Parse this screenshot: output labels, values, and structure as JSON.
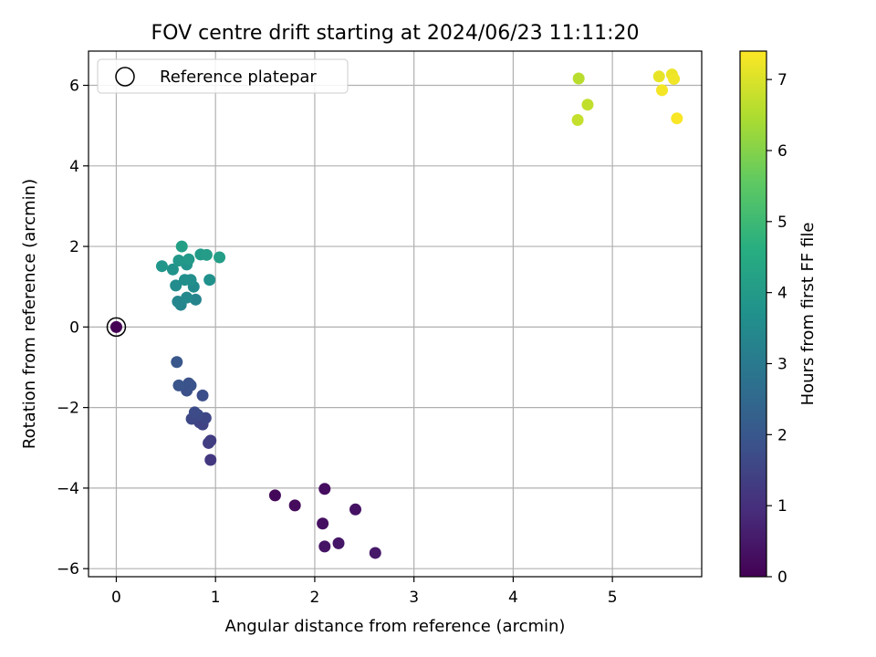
{
  "chart_data": {
    "type": "scatter",
    "title": "FOV centre drift starting at 2024/06/23 11:11:20",
    "xlabel": "Angular distance from reference (arcmin)",
    "ylabel": "Rotation from reference (arcmin)",
    "xlim": [
      -0.28,
      5.9
    ],
    "ylim": [
      -6.2,
      6.85
    ],
    "xticks": [
      0,
      1,
      2,
      3,
      4,
      5
    ],
    "yticks": [
      -6,
      -4,
      -2,
      0,
      2,
      4,
      6
    ],
    "xtick_labels": [
      "0",
      "1",
      "2",
      "3",
      "4",
      "5"
    ],
    "ytick_labels": [
      "−6",
      "−4",
      "−2",
      "0",
      "2",
      "4",
      "6"
    ],
    "grid": true,
    "legend": {
      "position": "top-left",
      "label": "Reference platepar"
    },
    "reference_point": {
      "x": 0,
      "y": 0
    },
    "colorbar": {
      "label": "Hours from first FF file",
      "range": [
        0,
        7.4
      ],
      "ticks": [
        0,
        1,
        2,
        3,
        4,
        5,
        6,
        7
      ],
      "tick_labels": [
        "0",
        "1",
        "2",
        "3",
        "4",
        "5",
        "6",
        "7"
      ],
      "colormap": "viridis"
    },
    "points": [
      {
        "x": 0.0,
        "y": 0.0,
        "c": 0.0
      },
      {
        "x": 1.6,
        "y": -4.18,
        "c": 0.15
      },
      {
        "x": 1.8,
        "y": -4.43,
        "c": 0.2
      },
      {
        "x": 2.1,
        "y": -4.02,
        "c": 0.25
      },
      {
        "x": 2.08,
        "y": -4.88,
        "c": 0.3
      },
      {
        "x": 2.41,
        "y": -4.53,
        "c": 0.35
      },
      {
        "x": 2.1,
        "y": -5.45,
        "c": 0.4
      },
      {
        "x": 2.24,
        "y": -5.37,
        "c": 0.45
      },
      {
        "x": 2.61,
        "y": -5.61,
        "c": 0.5
      },
      {
        "x": 0.95,
        "y": -3.3,
        "c": 1.2
      },
      {
        "x": 0.95,
        "y": -2.82,
        "c": 1.3
      },
      {
        "x": 0.93,
        "y": -2.88,
        "c": 1.35
      },
      {
        "x": 0.87,
        "y": -2.42,
        "c": 1.45
      },
      {
        "x": 0.84,
        "y": -2.37,
        "c": 1.5
      },
      {
        "x": 0.9,
        "y": -2.26,
        "c": 1.55
      },
      {
        "x": 0.76,
        "y": -2.28,
        "c": 1.6
      },
      {
        "x": 0.82,
        "y": -2.18,
        "c": 1.65
      },
      {
        "x": 0.79,
        "y": -2.12,
        "c": 1.7
      },
      {
        "x": 0.87,
        "y": -1.7,
        "c": 1.75
      },
      {
        "x": 0.71,
        "y": -1.58,
        "c": 1.8
      },
      {
        "x": 0.73,
        "y": -1.4,
        "c": 1.85
      },
      {
        "x": 0.75,
        "y": -1.45,
        "c": 1.9
      },
      {
        "x": 0.63,
        "y": -1.45,
        "c": 1.95
      },
      {
        "x": 0.61,
        "y": -0.87,
        "c": 2.0
      },
      {
        "x": 0.8,
        "y": 0.68,
        "c": 3.3
      },
      {
        "x": 0.65,
        "y": 0.55,
        "c": 3.35
      },
      {
        "x": 0.62,
        "y": 0.63,
        "c": 3.4
      },
      {
        "x": 0.71,
        "y": 0.73,
        "c": 3.45
      },
      {
        "x": 0.78,
        "y": 1.0,
        "c": 3.5
      },
      {
        "x": 0.6,
        "y": 1.03,
        "c": 3.55
      },
      {
        "x": 0.69,
        "y": 1.17,
        "c": 3.6
      },
      {
        "x": 0.75,
        "y": 1.17,
        "c": 3.65
      },
      {
        "x": 0.94,
        "y": 1.17,
        "c": 3.7
      },
      {
        "x": 0.57,
        "y": 1.43,
        "c": 3.75
      },
      {
        "x": 0.71,
        "y": 1.55,
        "c": 3.8
      },
      {
        "x": 0.46,
        "y": 1.51,
        "c": 3.85
      },
      {
        "x": 0.63,
        "y": 1.65,
        "c": 3.9
      },
      {
        "x": 0.73,
        "y": 1.68,
        "c": 3.95
      },
      {
        "x": 0.85,
        "y": 1.8,
        "c": 4.0
      },
      {
        "x": 0.91,
        "y": 1.79,
        "c": 4.05
      },
      {
        "x": 1.04,
        "y": 1.73,
        "c": 4.1
      },
      {
        "x": 0.66,
        "y": 2.0,
        "c": 4.15
      },
      {
        "x": 4.66,
        "y": 6.17,
        "c": 6.6
      },
      {
        "x": 4.75,
        "y": 5.52,
        "c": 6.7
      },
      {
        "x": 4.65,
        "y": 5.14,
        "c": 6.75
      },
      {
        "x": 5.47,
        "y": 6.22,
        "c": 7.15
      },
      {
        "x": 5.6,
        "y": 6.27,
        "c": 7.2
      },
      {
        "x": 5.62,
        "y": 6.16,
        "c": 7.25
      },
      {
        "x": 5.5,
        "y": 5.88,
        "c": 7.3
      },
      {
        "x": 5.65,
        "y": 5.18,
        "c": 7.35
      }
    ]
  }
}
